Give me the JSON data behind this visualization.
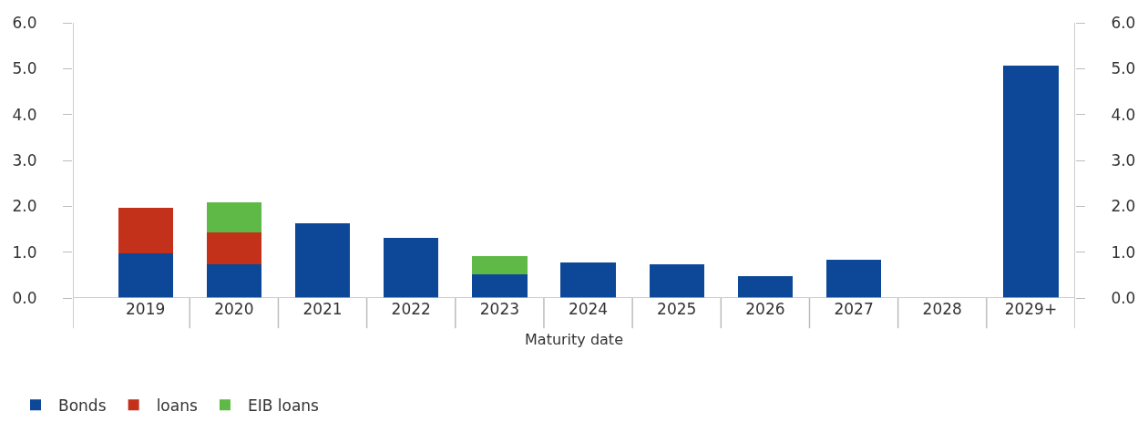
{
  "chart_data": {
    "type": "bar",
    "stacked": true,
    "xlabel": "Maturity date",
    "categories": [
      "2019",
      "2020",
      "2021",
      "2022",
      "2023",
      "2024",
      "2025",
      "2026",
      "2027",
      "2028",
      "2029+"
    ],
    "series": [
      {
        "name": "Bonds",
        "color": "#0c4897",
        "values": [
          0.97,
          0.73,
          1.63,
          1.31,
          0.52,
          0.78,
          0.74,
          0.48,
          0.84,
          0,
          5.07
        ]
      },
      {
        "name": "loans",
        "color": "#c4311a",
        "values": [
          1.0,
          0.7,
          0,
          0,
          0,
          0,
          0,
          0,
          0,
          0,
          0
        ]
      },
      {
        "name": "EIB loans",
        "color": "#5fb946",
        "values": [
          0,
          0.65,
          0,
          0,
          0.39,
          0,
          0,
          0,
          0,
          0,
          0
        ]
      }
    ],
    "ylim": [
      0,
      6
    ],
    "yticks": [
      {
        "value": 0,
        "label": "0.0"
      },
      {
        "value": 1,
        "label": "1.0"
      },
      {
        "value": 2,
        "label": "2.0"
      },
      {
        "value": 3,
        "label": "3.0"
      },
      {
        "value": 4,
        "label": "4.0"
      },
      {
        "value": 5,
        "label": "5.0"
      },
      {
        "value": 6,
        "label": "6.0"
      }
    ],
    "y2lim": [
      0,
      6
    ],
    "y2ticks": [
      {
        "value": 0,
        "label": "0.0"
      },
      {
        "value": 1,
        "label": "1.0"
      },
      {
        "value": 2,
        "label": "2.0"
      },
      {
        "value": 3,
        "label": "3.0"
      },
      {
        "value": 4,
        "label": "4.0"
      },
      {
        "value": 5,
        "label": "5.0"
      },
      {
        "value": 6,
        "label": "6.0"
      }
    ],
    "legend": "bottom left"
  }
}
